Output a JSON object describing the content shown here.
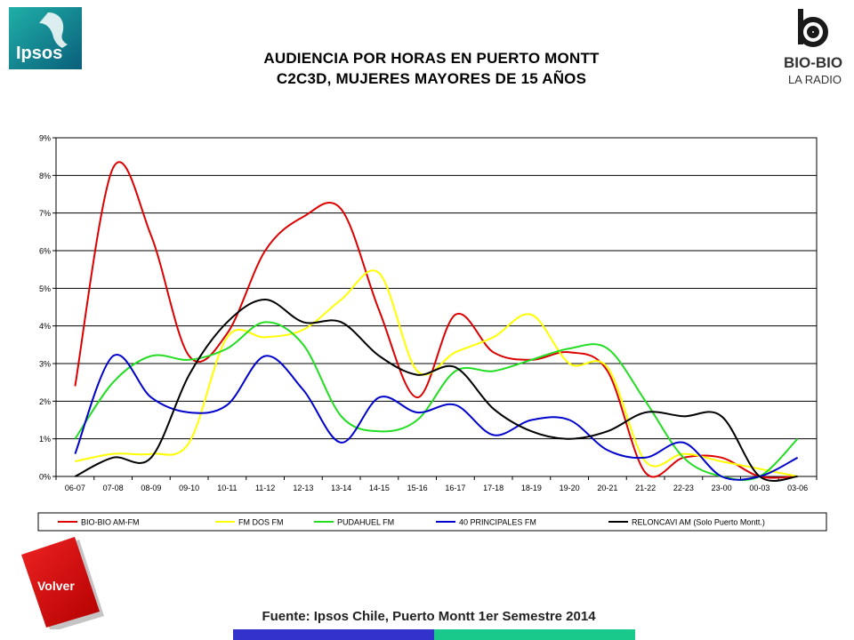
{
  "logos": {
    "ipsos_text": "Ipsos",
    "biobio_text": "BIO-BIO",
    "biobio_sub": "LA RADIO"
  },
  "header": {
    "title_line1": "AUDIENCIA POR HORAS EN PUERTO MONTT",
    "title_line2": "C2C3D, MUJERES MAYORES DE 15 AÑOS"
  },
  "buttons": {
    "volver": "Volver"
  },
  "footer": {
    "source": "Fuente: Ipsos Chile, Puerto Montt 1er Semestre 2014"
  },
  "chart_data": {
    "type": "line",
    "title": "",
    "xlabel": "",
    "ylabel": "",
    "ylim": [
      0,
      9
    ],
    "yticks": [
      "0%",
      "1%",
      "2%",
      "3%",
      "4%",
      "5%",
      "6%",
      "7%",
      "8%",
      "9%"
    ],
    "grid": true,
    "legend_position": "bottom",
    "categories": [
      "06-07",
      "07-08",
      "08-09",
      "09-10",
      "10-11",
      "11-12",
      "12-13",
      "13-14",
      "14-15",
      "15-16",
      "16-17",
      "17-18",
      "18-19",
      "19-20",
      "20-21",
      "21-22",
      "22-23",
      "23-00",
      "00-03",
      "03-06"
    ],
    "series": [
      {
        "name": "BIO-BIO AM-FM",
        "color": "#dd0000",
        "values": [
          2.4,
          8.2,
          6.4,
          3.2,
          3.8,
          6.0,
          6.9,
          7.1,
          4.4,
          2.1,
          4.3,
          3.3,
          3.1,
          3.3,
          2.8,
          0.1,
          0.5,
          0.5,
          0.0,
          0.0
        ]
      },
      {
        "name": "FM DOS FM",
        "color": "#ffff00",
        "values": [
          0.4,
          0.6,
          0.6,
          0.9,
          3.7,
          3.7,
          3.9,
          4.7,
          5.4,
          2.8,
          3.3,
          3.7,
          4.3,
          3.0,
          2.9,
          0.4,
          0.6,
          0.4,
          0.2,
          0.0
        ]
      },
      {
        "name": "PUDAHUEL FM",
        "color": "#22dd22",
        "values": [
          1.0,
          2.5,
          3.2,
          3.1,
          3.4,
          4.1,
          3.5,
          1.6,
          1.2,
          1.5,
          2.8,
          2.8,
          3.1,
          3.4,
          3.4,
          2.0,
          0.5,
          0.0,
          0.0,
          1.0
        ]
      },
      {
        "name": "40 PRINCIPALES FM",
        "color": "#0000cc",
        "values": [
          0.6,
          3.2,
          2.1,
          1.7,
          1.9,
          3.2,
          2.3,
          0.9,
          2.1,
          1.7,
          1.9,
          1.1,
          1.5,
          1.5,
          0.7,
          0.5,
          0.9,
          0.0,
          0.0,
          0.5
        ]
      },
      {
        "name": "RELONCAVI AM (Solo Puerto Montt.)",
        "color": "#000000",
        "values": [
          0.0,
          0.5,
          0.5,
          2.7,
          4.1,
          4.7,
          4.1,
          4.1,
          3.2,
          2.7,
          2.9,
          1.8,
          1.2,
          1.0,
          1.2,
          1.7,
          1.6,
          1.6,
          0.0,
          0.0
        ]
      }
    ]
  }
}
